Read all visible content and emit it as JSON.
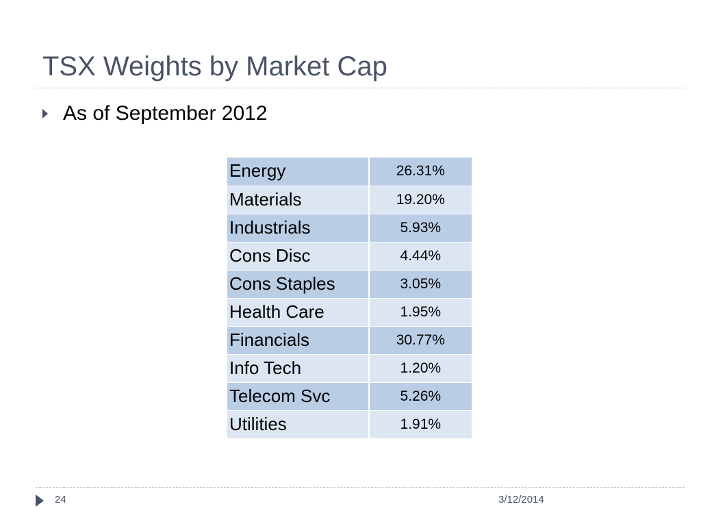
{
  "slide": {
    "title": "TSX Weights by Market Cap",
    "bullet": "As of September 2012",
    "rows": [
      {
        "sector": "Energy",
        "weight": "26.31%"
      },
      {
        "sector": "Materials",
        "weight": "19.20%"
      },
      {
        "sector": "Industrials",
        "weight": "5.93%"
      },
      {
        "sector": "Cons Disc",
        "weight": "4.44%"
      },
      {
        "sector": "Cons Staples",
        "weight": "3.05%"
      },
      {
        "sector": "Health Care",
        "weight": "1.95%"
      },
      {
        "sector": "Financials",
        "weight": "30.77%"
      },
      {
        "sector": "Info Tech",
        "weight": "1.20%"
      },
      {
        "sector": "Telecom Svc",
        "weight": "5.26%"
      },
      {
        "sector": "Utilities",
        "weight": "1.91%"
      }
    ],
    "footer": {
      "page_number": "24",
      "date": "3/12/2014"
    }
  },
  "colors": {
    "title_text": "#4a5366",
    "row_dark": "#b9cde5",
    "row_light": "#dce6f2"
  }
}
